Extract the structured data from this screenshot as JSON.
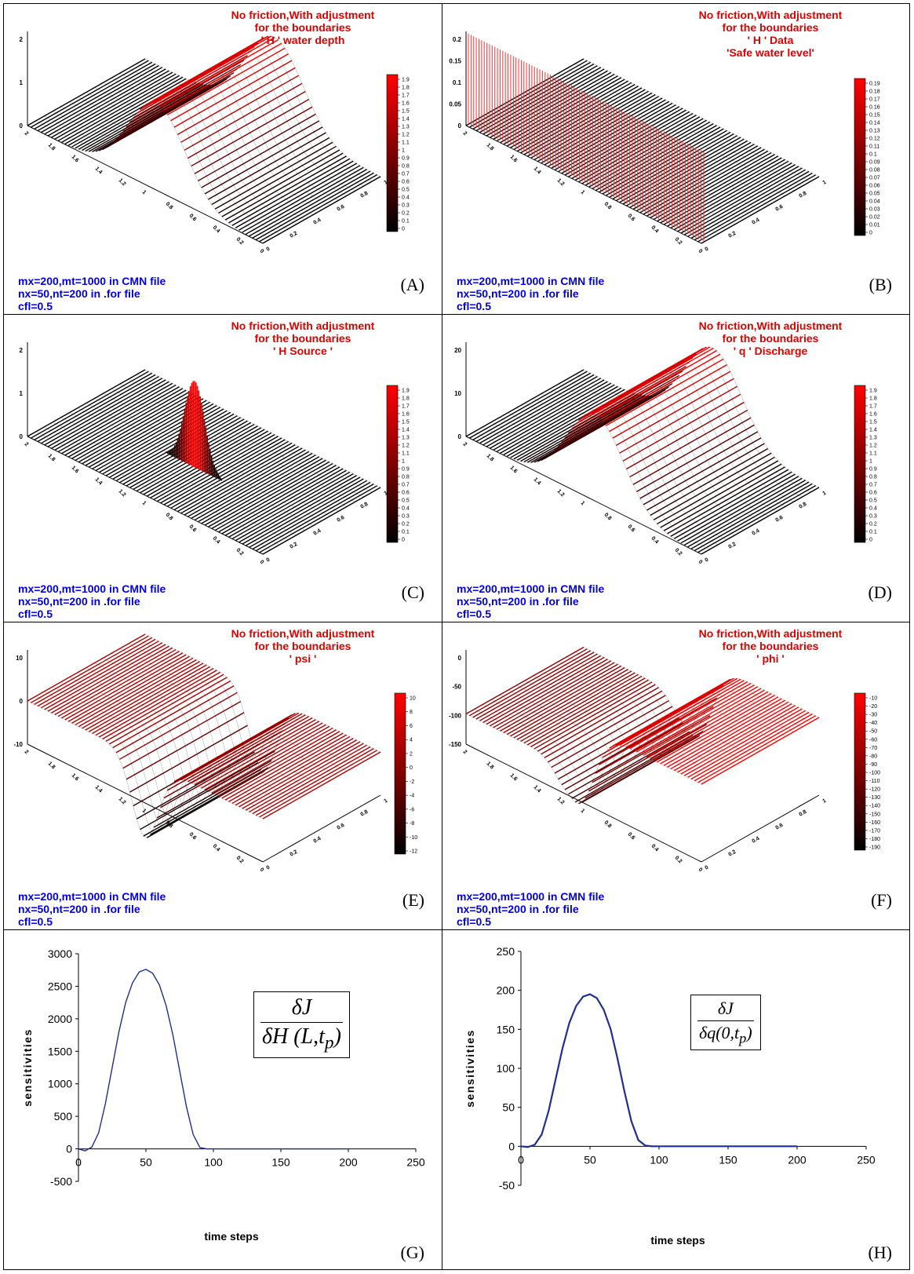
{
  "panels": [
    {
      "id": "A",
      "title": [
        "No friction,With adjustment",
        "for the boundaries",
        "' H ' water depth"
      ],
      "letter": "(A)",
      "params": [
        "mx=200,mt=1000 in CMN file",
        "nx=50,nt=200 in .for file",
        "cfl=0.5"
      ],
      "colorbar_ticks": [
        "1.9",
        "1.8",
        "1.7",
        "1.6",
        "1.5",
        "1.4",
        "1.3",
        "1.2",
        "1.1",
        "1",
        "0.9",
        "0.8",
        "0.7",
        "0.6",
        "0.5",
        "0.4",
        "0.3",
        "0.2",
        "0.1",
        "0"
      ],
      "z_ticks": [
        "2",
        "1",
        "0"
      ],
      "y_ticks": [
        "2",
        "1.8",
        "1.6",
        "1.4",
        "1.2",
        "1",
        "0.8",
        "0.6",
        "0.4",
        "0.2",
        "0"
      ],
      "x_ticks": [
        "0",
        "0.2",
        "0.4",
        "0.6",
        "0.8",
        "1"
      ]
    },
    {
      "id": "B",
      "title": [
        "No friction,With adjustment",
        "for the boundaries",
        "' H ' Data",
        "'Safe water level'"
      ],
      "letter": "(B)",
      "params": [
        "mx=200,mt=1000 in CMN file",
        "nx=50,nt=200 in .for file",
        "cfl=0.5"
      ],
      "colorbar_ticks": [
        "0.19",
        "0.18",
        "0.17",
        "0.16",
        "0.15",
        "0.14",
        "0.13",
        "0.12",
        "0.11",
        "0.1",
        "0.09",
        "0.08",
        "0.07",
        "0.06",
        "0.05",
        "0.04",
        "0.03",
        "0.02",
        "0.01",
        "0"
      ],
      "z_ticks": [
        "0.2",
        "0.15",
        "0.1",
        "0.05",
        "0"
      ],
      "y_ticks": [
        "2",
        "1.8",
        "1.6",
        "1.4",
        "1.2",
        "1",
        "0.8",
        "0.6",
        "0.4",
        "0.2",
        "0"
      ],
      "x_ticks": [
        "0",
        "0.2",
        "0.4",
        "0.6",
        "0.8",
        "1"
      ]
    },
    {
      "id": "C",
      "title": [
        "No friction,With adjustment",
        "for the boundaries",
        "' H Source '"
      ],
      "letter": "(C)",
      "params": [
        "mx=200,mt=1000 in CMN file",
        "nx=50,nt=200 in .for file",
        "cfl=0.5"
      ],
      "colorbar_ticks": [
        "1.9",
        "1.8",
        "1.7",
        "1.6",
        "1.5",
        "1.4",
        "1.3",
        "1.2",
        "1.1",
        "1",
        "0.9",
        "0.8",
        "0.7",
        "0.6",
        "0.5",
        "0.4",
        "0.3",
        "0.2",
        "0.1",
        "0"
      ],
      "z_ticks": [
        "2",
        "1",
        "0"
      ],
      "y_ticks": [
        "2",
        "1.8",
        "1.6",
        "1.4",
        "1.2",
        "1",
        "0.8",
        "0.6",
        "0.4",
        "0.2",
        "0"
      ],
      "x_ticks": [
        "0",
        "0.2",
        "0.4",
        "0.6",
        "0.8",
        "1"
      ]
    },
    {
      "id": "D",
      "title": [
        "No friction,With adjustment",
        "for the boundaries",
        "' q ' Discharge"
      ],
      "letter": "(D)",
      "params": [
        "mx=200,mt=1000 in CMN file",
        "nx=50,nt=200 in .for file",
        "cfl=0.5"
      ],
      "colorbar_ticks": [
        "1.9",
        "1.8",
        "1.7",
        "1.6",
        "1.5",
        "1.4",
        "1.3",
        "1.2",
        "1.1",
        "1",
        "0.9",
        "0.8",
        "0.7",
        "0.6",
        "0.5",
        "0.4",
        "0.3",
        "0.2",
        "0.1",
        "0"
      ],
      "z_ticks": [
        "20",
        "10",
        "0"
      ],
      "y_ticks": [
        "2",
        "1.8",
        "1.6",
        "1.4",
        "1.2",
        "1",
        "0.8",
        "0.6",
        "0.4",
        "0.2",
        "0"
      ],
      "x_ticks": [
        "0",
        "0.2",
        "0.4",
        "0.6",
        "0.8",
        "1"
      ]
    },
    {
      "id": "E",
      "title": [
        "No friction,With adjustment",
        "for the boundaries",
        "' psi '"
      ],
      "letter": "(E)",
      "params": [
        "mx=200,mt=1000 in CMN file",
        "nx=50,nt=200 in .for file",
        "cfl=0.5"
      ],
      "colorbar_ticks": [
        "10",
        "8",
        "6",
        "4",
        "2",
        "0",
        "-2",
        "-4",
        "-6",
        "-8",
        "-10",
        "-12"
      ],
      "z_ticks": [
        "10",
        "0",
        "-10"
      ],
      "y_ticks": [
        "2",
        "1.8",
        "1.6",
        "1.4",
        "1.2",
        "1",
        "0.8",
        "0.6",
        "0.4",
        "0.2",
        "0"
      ],
      "x_ticks": [
        "0",
        "0.2",
        "0.4",
        "0.6",
        "0.8",
        "1"
      ]
    },
    {
      "id": "F",
      "title": [
        "No friction,With adjustment",
        "for the boundaries",
        "' phi '"
      ],
      "letter": "(F)",
      "params": [
        "mx=200,mt=1000 in CMN file",
        "nx=50,nt=200 in .for file",
        "cfl=0.5"
      ],
      "colorbar_ticks": [
        "-10",
        "-20",
        "-30",
        "-40",
        "-50",
        "-60",
        "-70",
        "-80",
        "-90",
        "-100",
        "-110",
        "-120",
        "-130",
        "-140",
        "-150",
        "-160",
        "-170",
        "-180",
        "-190"
      ],
      "z_ticks": [
        "0",
        "-50",
        "-100",
        "-150"
      ],
      "y_ticks": [
        "2",
        "1.8",
        "1.6",
        "1.4",
        "1.2",
        "1",
        "0.8",
        "0.6",
        "0.4",
        "0.2",
        "0"
      ],
      "x_ticks": [
        "0",
        "0.2",
        "0.4",
        "0.6",
        "0.8",
        "1"
      ]
    }
  ],
  "colors": {
    "surface_high": "#ff0000",
    "surface_low": "#000000",
    "title": "#e00000",
    "params": "#0000dd",
    "line": "#1f2f8f"
  },
  "line_panels": [
    {
      "id": "G",
      "letter": "(G)",
      "formula_num": "δJ",
      "formula_den": "δH (L,t",
      "formula_sub": "p",
      "xlabel": "time steps",
      "ylabel": "sensitivities",
      "yticks": [
        "3000",
        "2500",
        "2000",
        "1500",
        "1000",
        "500",
        "0",
        "-500"
      ],
      "xticks": [
        "0",
        "50",
        "100",
        "150",
        "200",
        "250"
      ]
    },
    {
      "id": "H",
      "letter": "(H)",
      "formula_num": "δJ",
      "formula_den": "δq(0,t",
      "formula_sub": "p",
      "xlabel": "time steps",
      "ylabel": "sensitivities",
      "yticks": [
        "250",
        "200",
        "150",
        "100",
        "50",
        "0",
        "-50"
      ],
      "xticks": [
        "0",
        "50",
        "100",
        "150",
        "200",
        "250"
      ]
    }
  ],
  "chart_data": [
    {
      "type": "line",
      "panel": "G",
      "xlabel": "time steps",
      "ylabel": "sensitivities",
      "xlim": [
        0,
        250
      ],
      "ylim": [
        -500,
        3000
      ],
      "x": [
        0,
        5,
        10,
        15,
        20,
        25,
        30,
        35,
        40,
        45,
        50,
        55,
        60,
        65,
        70,
        75,
        80,
        85,
        90,
        95,
        100,
        150,
        200
      ],
      "series": [
        {
          "values": [
            0,
            -30,
            30,
            250,
            700,
            1250,
            1800,
            2250,
            2550,
            2720,
            2760,
            2700,
            2520,
            2200,
            1750,
            1200,
            650,
            220,
            20,
            0,
            0,
            0,
            0
          ]
        }
      ]
    },
    {
      "type": "line",
      "panel": "H",
      "xlabel": "time steps",
      "ylabel": "sensitivities",
      "xlim": [
        0,
        250
      ],
      "ylim": [
        -50,
        250
      ],
      "x": [
        0,
        5,
        10,
        15,
        20,
        25,
        30,
        35,
        40,
        45,
        50,
        55,
        60,
        65,
        70,
        75,
        80,
        85,
        90,
        95,
        100,
        150,
        200
      ],
      "series": [
        {
          "values": [
            0,
            -1,
            2,
            15,
            45,
            85,
            125,
            158,
            180,
            192,
            195,
            190,
            175,
            150,
            112,
            70,
            32,
            8,
            1,
            0,
            0,
            0,
            0
          ]
        }
      ]
    }
  ]
}
